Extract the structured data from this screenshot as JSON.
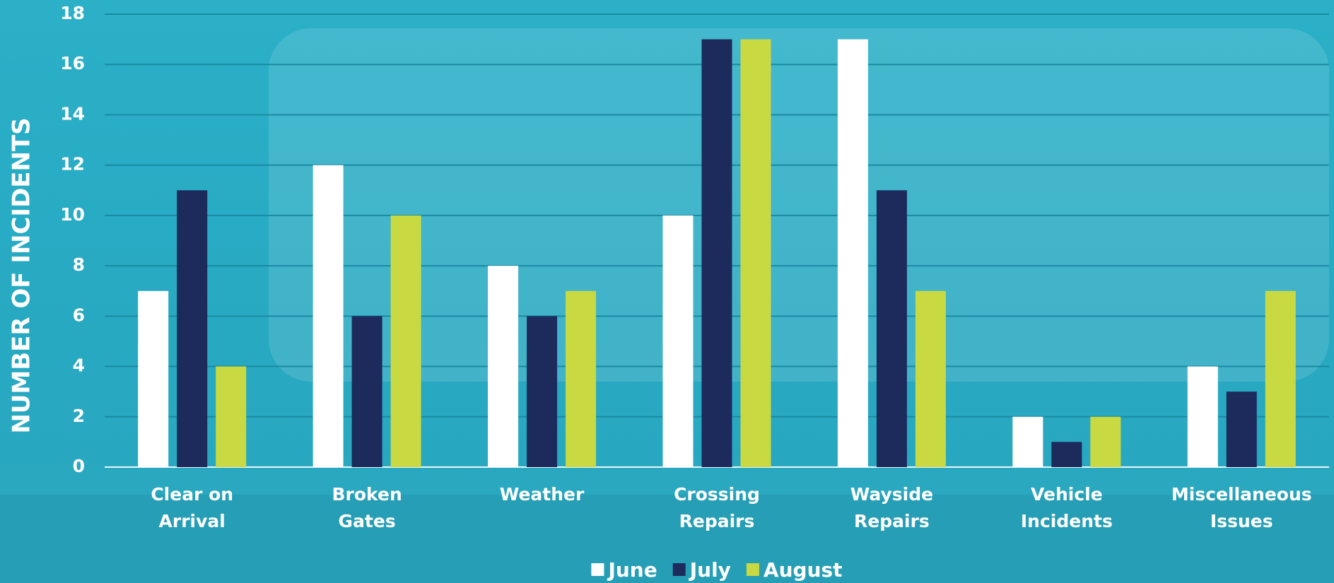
{
  "chart_data": {
    "type": "bar",
    "y_label": "NUMBER OF INCIDENTS",
    "categories": [
      "Clear on\nArrival",
      "Broken\nGates",
      "Weather",
      "Crossing\nRepairs",
      "Wayside\nRepairs",
      "Vehicle\nIncidents",
      "Miscellaneous\nIssues"
    ],
    "series": [
      {
        "name": "June",
        "color": "#ffffff",
        "values": [
          7,
          12,
          8,
          10,
          17,
          2,
          4
        ]
      },
      {
        "name": "July",
        "color": "#1c2a5c",
        "values": [
          11,
          6,
          6,
          17,
          11,
          1,
          3
        ]
      },
      {
        "name": "August",
        "color": "#c9d941",
        "values": [
          4,
          10,
          7,
          17,
          7,
          2,
          7
        ]
      }
    ],
    "ylim": [
      0,
      18
    ],
    "yticks": [
      0,
      2,
      4,
      6,
      8,
      10,
      12,
      14,
      16,
      18
    ],
    "grid": true,
    "legend": "bottom"
  }
}
